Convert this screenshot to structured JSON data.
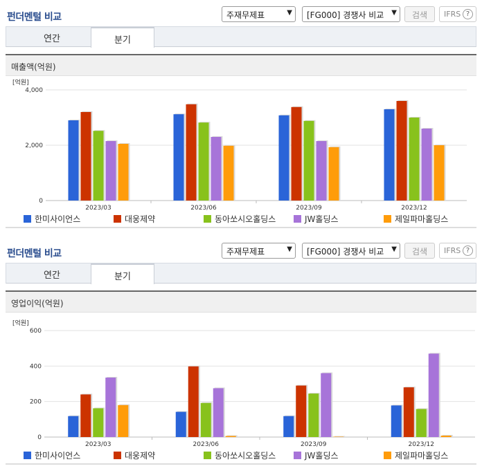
{
  "panels": [
    {
      "title": "펀더멘털 비교",
      "select_statement": "주재무제표",
      "select_compare": "[FG000] 경쟁사 비교",
      "search_label": "검색",
      "ifrs_label": "IFRS",
      "ifrs_help": "?",
      "tabs": [
        "연간",
        "분기"
      ],
      "active_tab": 1,
      "metric": "매출액(억원)",
      "unit_label": "[억원]"
    },
    {
      "title": "펀더멘털 비교",
      "select_statement": "주재무제표",
      "select_compare": "[FG000] 경쟁사 비교",
      "search_label": "검색",
      "ifrs_label": "IFRS",
      "ifrs_help": "?",
      "tabs": [
        "연간",
        "분기"
      ],
      "active_tab": 1,
      "metric": "영업이익(억원)",
      "unit_label": "[억원]"
    }
  ],
  "colors": [
    "#2a64d8",
    "#cc3300",
    "#88c21c",
    "#a774d9",
    "#ff9c0a"
  ],
  "chart_data": [
    {
      "type": "bar",
      "title": "매출액(억원)",
      "ylabel": "[억원]",
      "categories": [
        "2023/03",
        "2023/06",
        "2023/09",
        "2023/12"
      ],
      "ylim": [
        0,
        4000
      ],
      "yticks": [
        0,
        2000,
        4000
      ],
      "ytick_labels": [
        "0",
        "2,000",
        "4,000"
      ],
      "legend": "bottom",
      "series": [
        {
          "name": "한미사이언스",
          "values": [
            2900,
            3120,
            3080,
            3300
          ]
        },
        {
          "name": "대웅제약",
          "values": [
            3200,
            3480,
            3380,
            3600
          ]
        },
        {
          "name": "동아쏘시오홀딩스",
          "values": [
            2520,
            2820,
            2880,
            3000
          ]
        },
        {
          "name": "JW홀딩스",
          "values": [
            2150,
            2300,
            2150,
            2600
          ]
        },
        {
          "name": "제일파마홀딩스",
          "values": [
            2050,
            1980,
            1930,
            2000
          ]
        }
      ]
    },
    {
      "type": "bar",
      "title": "영업이익(억원)",
      "ylabel": "[억원]",
      "categories": [
        "2023/03",
        "2023/06",
        "2023/09",
        "2023/12"
      ],
      "ylim": [
        0,
        600
      ],
      "yticks": [
        0,
        200,
        400,
        600
      ],
      "ytick_labels": [
        "0",
        "200",
        "400",
        "600"
      ],
      "legend": "bottom",
      "series": [
        {
          "name": "한미사이언스",
          "values": [
            118,
            142,
            118,
            178
          ]
        },
        {
          "name": "대웅제약",
          "values": [
            240,
            398,
            290,
            280
          ]
        },
        {
          "name": "동아쏘시오홀딩스",
          "values": [
            162,
            192,
            245,
            158
          ]
        },
        {
          "name": "JW홀딩스",
          "values": [
            335,
            275,
            360,
            470
          ]
        },
        {
          "name": "제일파마홀딩스",
          "values": [
            180,
            6,
            2,
            8
          ]
        }
      ]
    }
  ]
}
